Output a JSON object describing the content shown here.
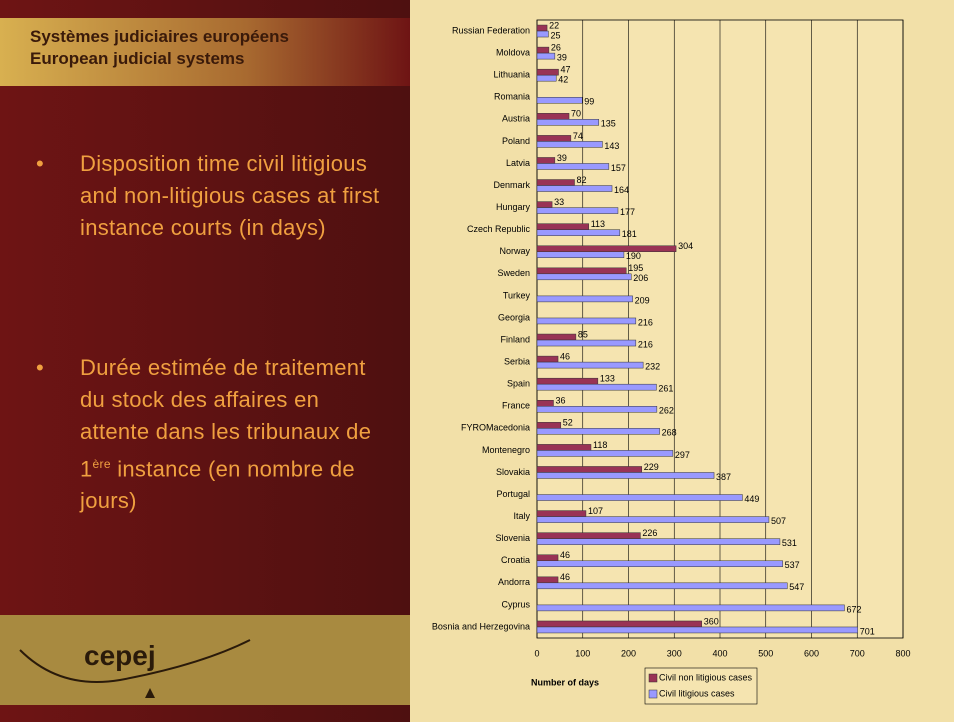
{
  "header": {
    "title_fr": "Systèmes judiciaires européens",
    "title_en": "European judicial systems"
  },
  "bullets": [
    {
      "text": "Disposition time civil litigious and non-litigious cases at first instance courts (in days)"
    },
    {
      "text": "Durée estimée de traitement du stock des affaires en attente dans les tribunaux de 1",
      "sup": "ère",
      "rest": " instance (en nombre de jours)"
    }
  ],
  "logo": "cepej",
  "chart_data": {
    "type": "hbar",
    "xlabel": "Number of days",
    "categories": [
      "Russian Federation",
      "Moldova",
      "Lithuania",
      "Romania",
      "Austria",
      "Poland",
      "Latvia",
      "Denmark",
      "Hungary",
      "Czech Republic",
      "Norway",
      "Sweden",
      "Turkey",
      "Georgia",
      "Finland",
      "Serbia",
      "Spain",
      "France",
      "FYROMacedonia",
      "Montenegro",
      "Slovakia",
      "Portugal",
      "Italy",
      "Slovenia",
      "Croatia",
      "Andorra",
      "Cyprus",
      "Bosnia and Herzegovina"
    ],
    "series": [
      {
        "name": "Civil non litigious cases",
        "color": "#993355",
        "values": [
          22,
          26,
          47,
          null,
          70,
          74,
          39,
          82,
          33,
          113,
          304,
          195,
          null,
          null,
          85,
          46,
          133,
          36,
          52,
          118,
          229,
          null,
          107,
          226,
          46,
          46,
          null,
          360
        ]
      },
      {
        "name": "Civil litigious cases",
        "color": "#9999ff",
        "values": [
          25,
          39,
          42,
          99,
          135,
          143,
          157,
          164,
          177,
          181,
          190,
          206,
          209,
          216,
          216,
          232,
          261,
          262,
          268,
          297,
          387,
          449,
          507,
          531,
          537,
          547,
          672,
          701
        ]
      }
    ],
    "xlim": [
      0,
      800
    ],
    "xticks": [
      0,
      100,
      200,
      300,
      400,
      500,
      600,
      700,
      800
    ],
    "grid": true
  }
}
